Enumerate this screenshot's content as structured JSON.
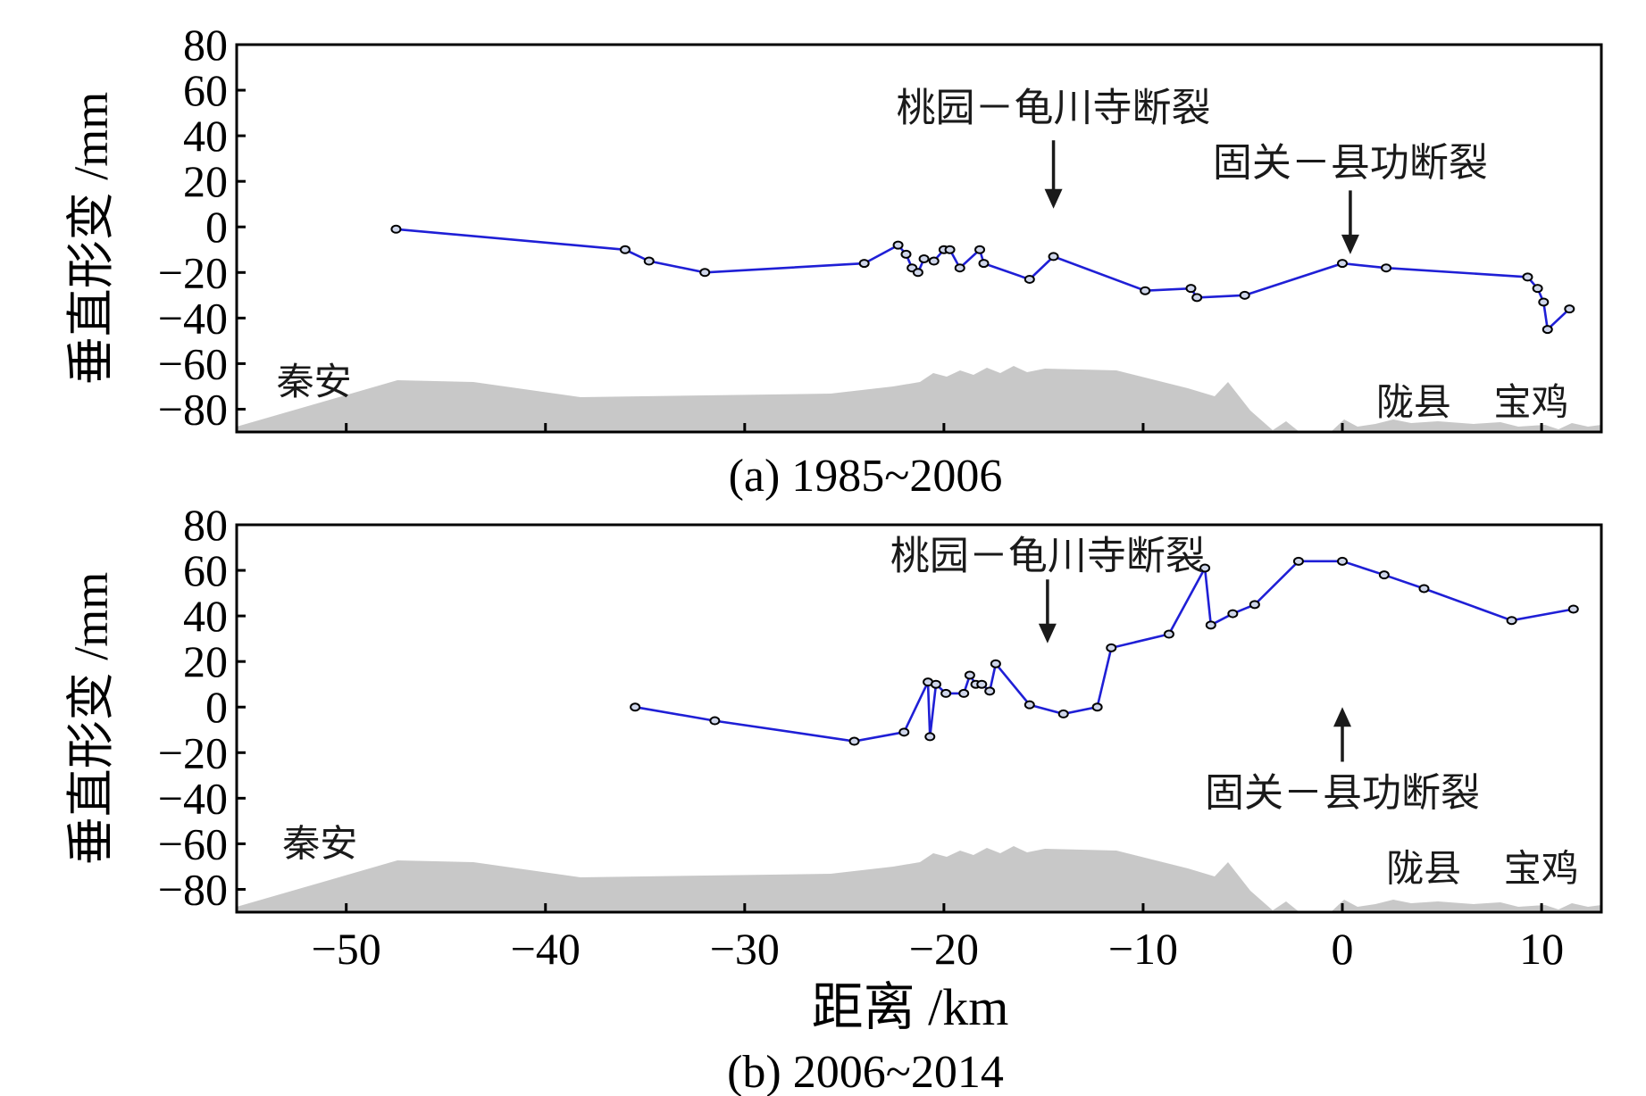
{
  "chart_data": [
    {
      "type": "line",
      "panel": "a",
      "caption": "(a) 1985~2006",
      "ylabel": "垂直形变 /mm",
      "xlabel": "",
      "xlim": [
        -55.5,
        13
      ],
      "ylim": [
        -90,
        80
      ],
      "xticks": [
        -50,
        -40,
        -30,
        -20,
        -10,
        0,
        10
      ],
      "yticks": [
        80,
        60,
        40,
        20,
        0,
        -20,
        -40,
        -60,
        -80
      ],
      "ytick_labels": [
        "80",
        "60",
        "40",
        "20",
        "0",
        "−20",
        "−40",
        "−60",
        "−80"
      ],
      "series": [
        {
          "color": "#1f1fd6",
          "x": [
            -47.5,
            -36,
            -34.8,
            -32,
            -24,
            -22.3,
            -21.9,
            -21.6,
            -21.3,
            -21.0,
            -20.5,
            -20.0,
            -19.7,
            -19.2,
            -18.2,
            -18.0,
            -15.7,
            -14.5,
            -9.9,
            -7.6,
            -7.3,
            -4.9,
            0.0,
            2.2,
            9.3,
            9.8,
            10.1,
            10.3,
            11.4
          ],
          "y": [
            -1,
            -10,
            -15,
            -20,
            -16,
            -8,
            -12,
            -18,
            -20,
            -14,
            -15,
            -10,
            -10,
            -18,
            -10,
            -16,
            -23,
            -13,
            -28,
            -27,
            -31,
            -30,
            -16,
            -18,
            -22,
            -27,
            -33,
            -45,
            -36
          ]
        }
      ],
      "annotations": [
        {
          "text": "桃园－龟川寺断裂",
          "arrow_x": -14.5,
          "arrow_from_y": 38,
          "arrow_to_y": 8,
          "label_y": 52
        },
        {
          "text": "固关－县功断裂",
          "arrow_x": 0.4,
          "arrow_from_y": 16,
          "arrow_to_y": -12,
          "label_y": 28
        }
      ],
      "places": [
        {
          "text": "秦安",
          "x": -53.5,
          "y": -68
        },
        {
          "text": "陇县",
          "x": 1.7,
          "y": -77
        },
        {
          "text": "宝鸡",
          "x": 7.6,
          "y": -77
        }
      ]
    },
    {
      "type": "line",
      "panel": "b",
      "caption": "(b) 2006~2014",
      "ylabel": "垂直形变 /mm",
      "xlabel": "距离 /km",
      "xlim": [
        -55.5,
        13
      ],
      "ylim": [
        -90,
        80
      ],
      "xticks": [
        -50,
        -40,
        -30,
        -20,
        -10,
        0,
        10
      ],
      "xtick_labels": [
        "−50",
        "−40",
        "−30",
        "−20",
        "−10",
        "0",
        "10"
      ],
      "yticks": [
        80,
        60,
        40,
        20,
        0,
        -20,
        -40,
        -60,
        -80
      ],
      "ytick_labels": [
        "80",
        "60",
        "40",
        "20",
        "0",
        "−20",
        "−40",
        "−60",
        "−80"
      ],
      "series": [
        {
          "color": "#1f1fd6",
          "x": [
            -35.5,
            -31.5,
            -24.5,
            -22.0,
            -20.8,
            -20.7,
            -20.4,
            -19.9,
            -19.0,
            -18.7,
            -18.4,
            -18.1,
            -17.7,
            -17.4,
            -15.7,
            -14.0,
            -12.3,
            -11.6,
            -8.7,
            -6.9,
            -6.6,
            -5.5,
            -4.4,
            -2.2,
            0.0,
            2.1,
            4.1,
            8.5,
            11.6
          ],
          "y": [
            0,
            -6,
            -15,
            -11,
            11,
            -13,
            10,
            6,
            6,
            14,
            10,
            10,
            7,
            19,
            1,
            -3,
            0,
            26,
            32,
            61,
            36,
            41,
            45,
            64,
            64,
            58,
            52,
            38,
            43
          ]
        }
      ],
      "annotations": [
        {
          "text": "桃园－龟川寺断裂",
          "arrow_x": -14.8,
          "arrow_from_y": 56,
          "arrow_to_y": 28,
          "label_y": 66
        },
        {
          "text": "固关－县功断裂",
          "arrow_x": 0.0,
          "arrow_from_y": -24,
          "arrow_to_y": 0,
          "label_y": -38
        }
      ],
      "places": [
        {
          "text": "秦安",
          "x": -53.2,
          "y": -60
        },
        {
          "text": "陇县",
          "x": 2.2,
          "y": -71
        },
        {
          "text": "宝鸡",
          "x": 8.1,
          "y": -71
        }
      ]
    }
  ]
}
